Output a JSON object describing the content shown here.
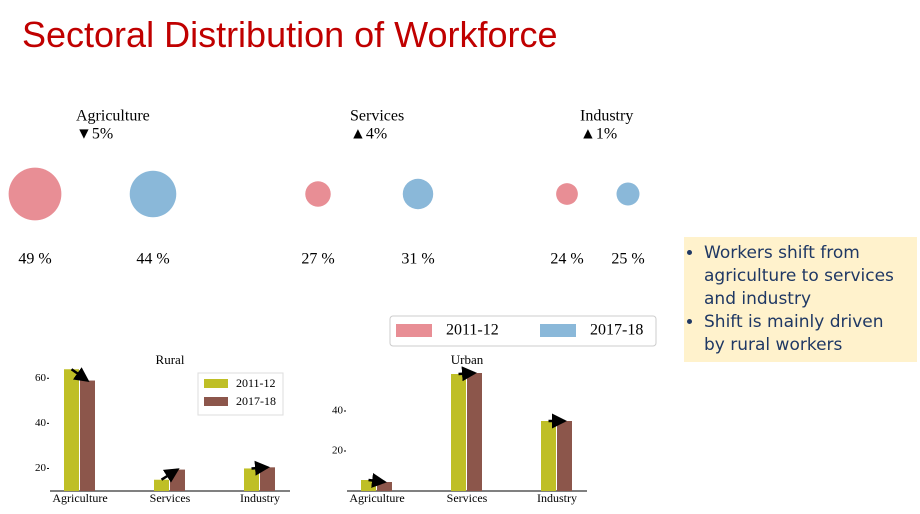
{
  "title": "Sectoral Distribution of Workforce",
  "notes": [
    "Workers shift from agriculture to services and industry",
    "Shift is mainly driven by rural workers"
  ],
  "chart_data": [
    {
      "type": "bubble",
      "categories": [
        "Agriculture",
        "Services",
        "Industry"
      ],
      "annotations": [
        "▼5%",
        "▲4%",
        "▲1%"
      ],
      "series": [
        {
          "name": "2011-12",
          "color": "#e88e95",
          "values": [
            49,
            27,
            24
          ],
          "value_labels": [
            "49 %",
            "27 %",
            "24 %"
          ]
        },
        {
          "name": "2017-18",
          "color": "#8ab8d9",
          "values": [
            44,
            31,
            25
          ],
          "value_labels": [
            "44 %",
            "31 %",
            "25 %"
          ]
        }
      ],
      "legend": "bottom-right"
    },
    {
      "type": "bar",
      "title": "Rural",
      "categories": [
        "Agriculture",
        "Services",
        "Industry"
      ],
      "series": [
        {
          "name": "2011-12",
          "color": "#bfbf26",
          "values": [
            64,
            15,
            20
          ]
        },
        {
          "name": "2017-18",
          "color": "#8c564b",
          "values": [
            59,
            19.5,
            20.5
          ]
        }
      ],
      "ylim": [
        10,
        65
      ],
      "yticks": [
        20,
        40,
        60
      ],
      "legend": "upper right"
    },
    {
      "type": "bar",
      "title": "Urban",
      "categories": [
        "Agriculture",
        "Services",
        "Industry"
      ],
      "series": [
        {
          "name": "2011-12",
          "color": "#bfbf26",
          "values": [
            5.5,
            58.5,
            35
          ]
        },
        {
          "name": "2017-18",
          "color": "#8c564b",
          "values": [
            4.5,
            59,
            35
          ]
        }
      ],
      "ylim": [
        0,
        62
      ],
      "yticks": [
        20,
        40
      ]
    }
  ]
}
